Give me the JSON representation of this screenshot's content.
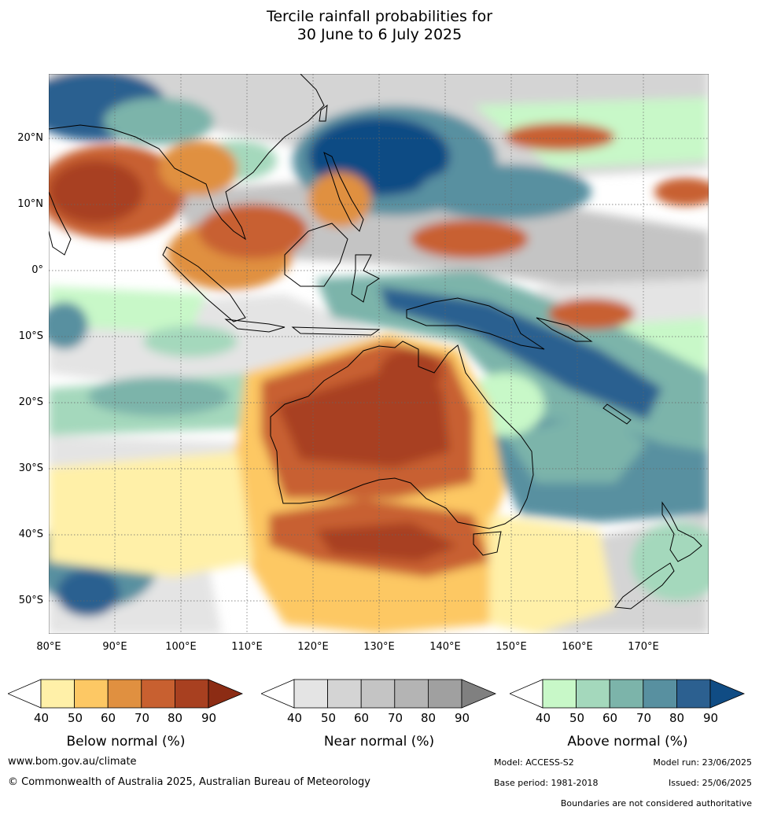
{
  "title": {
    "line1": "Tercile rainfall probabilities for",
    "line2": "30 June to 6 July 2025"
  },
  "map": {
    "lat_labels": [
      "20°N",
      "10°N",
      "0°",
      "10°S",
      "20°S",
      "30°S",
      "40°S",
      "50°S"
    ],
    "lon_labels": [
      "80°E",
      "90°E",
      "100°E",
      "110°E",
      "120°E",
      "130°E",
      "140°E",
      "150°E",
      "160°E",
      "170°E"
    ],
    "colors": {
      "below": [
        "#fff0a8",
        "#fdc864",
        "#e09040",
        "#c86030",
        "#a84020",
        "#8c2c14"
      ],
      "near": [
        "#e4e4e4",
        "#d4d4d4",
        "#c4c4c4",
        "#b4b4b4",
        "#a0a0a0",
        "#808080"
      ],
      "above": [
        "#c8f8c8",
        "#a4d8bc",
        "#7cb4aa",
        "#5890a0",
        "#2c6090",
        "#104c84"
      ]
    }
  },
  "colorbars": [
    {
      "label": "Below normal (%)",
      "ticks": [
        "40",
        "50",
        "60",
        "70",
        "80",
        "90"
      ]
    },
    {
      "label": "Near normal (%)",
      "ticks": [
        "40",
        "50",
        "60",
        "70",
        "80",
        "90"
      ]
    },
    {
      "label": "Above normal (%)",
      "ticks": [
        "40",
        "50",
        "60",
        "70",
        "80",
        "90"
      ]
    }
  ],
  "footer": {
    "website": "www.bom.gov.au/climate",
    "copyright": "© Commonwealth of Australia 2025, Australian Bureau of Meteorology",
    "model": "Model: ACCESS-S2",
    "model_run": "Model run: 23/06/2025",
    "base_period": "Base period: 1981-2018",
    "issued": "Issued: 25/06/2025",
    "disclaimer": "Boundaries are not considered authoritative"
  }
}
